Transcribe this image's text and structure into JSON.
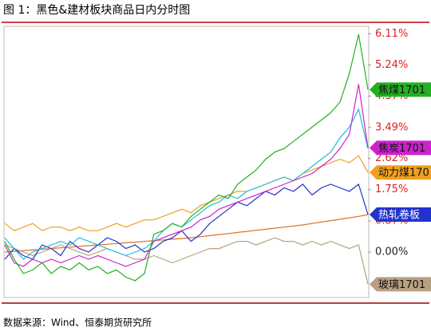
{
  "chart_data": {
    "type": "line",
    "title": "图 1：黑色&建材板块商品日内分时图",
    "source": "数据来源：Wind、恒泰期货研究所",
    "ylim": [
      -1.25,
      6.3
    ],
    "yticks": [
      {
        "value": 0,
        "label": "0.00%"
      },
      {
        "value": 0.87,
        "label": "0.87%"
      },
      {
        "value": 1.75,
        "label": "1.75%"
      },
      {
        "value": 2.62,
        "label": "2.62%"
      },
      {
        "value": 3.49,
        "label": "3.49%"
      },
      {
        "value": 4.37,
        "label": "4.37%"
      },
      {
        "value": 5.24,
        "label": "5.24%"
      },
      {
        "value": 6.11,
        "label": "6.11%"
      }
    ],
    "series": [
      {
        "color": "#e07020",
        "values": [
          0,
          0.02,
          0.04,
          0.06,
          0.08,
          0.1,
          0.12,
          0.14,
          0.16,
          0.18,
          0.2,
          0.22,
          0.24,
          0.26,
          0.28,
          0.3,
          0.32,
          0.34,
          0.36,
          0.38,
          0.4,
          0.43,
          0.46,
          0.49,
          0.52,
          0.55,
          0.58,
          0.61,
          0.64,
          0.67,
          0.7,
          0.73,
          0.76,
          0.8,
          0.84,
          0.88,
          0.92,
          0.96,
          1.0,
          1.05
        ]
      },
      {
        "name": "玻璃1701",
        "color": "#b8a080",
        "values": [
          0.2,
          0.1,
          0.0,
          -0.1,
          0.0,
          0.1,
          0.2,
          0.1,
          0.0,
          -0.1,
          0.0,
          0.1,
          0.0,
          -0.1,
          -0.2,
          -0.2,
          -0.1,
          -0.2,
          -0.3,
          -0.2,
          -0.1,
          0.0,
          0.1,
          0.1,
          0.2,
          0.3,
          0.3,
          0.2,
          0.3,
          0.4,
          0.3,
          0.3,
          0.2,
          0.3,
          0.2,
          0.3,
          0.2,
          0.1,
          0.2,
          -0.9
        ]
      },
      {
        "name": "动力煤170",
        "color": "#f0a020",
        "values": [
          0.8,
          0.6,
          0.7,
          0.8,
          0.6,
          0.7,
          0.7,
          0.6,
          0.7,
          0.6,
          0.6,
          0.7,
          0.8,
          0.7,
          0.8,
          0.9,
          0.9,
          1.0,
          1.1,
          1.2,
          1.1,
          1.3,
          1.4,
          1.5,
          1.6,
          1.7,
          1.7,
          1.8,
          1.9,
          2.0,
          2.1,
          2.0,
          2.2,
          2.3,
          2.4,
          2.5,
          2.6,
          2.5,
          2.7,
          2.23
        ]
      },
      {
        "name": "热轧卷板",
        "color": "#2233cc",
        "values": [
          -0.2,
          0.1,
          -0.1,
          -0.2,
          0.2,
          0.1,
          -0.1,
          0.3,
          0.1,
          0.0,
          0.2,
          0.4,
          0.3,
          0.1,
          0.2,
          0.0,
          0.1,
          0.3,
          0.4,
          0.6,
          0.3,
          0.5,
          0.8,
          1.0,
          1.2,
          1.4,
          1.3,
          1.5,
          1.7,
          1.6,
          1.8,
          1.7,
          1.9,
          1.6,
          1.8,
          1.9,
          1.8,
          1.7,
          1.9,
          1.05
        ]
      },
      {
        "color": "#22bbdd",
        "values": [
          0.4,
          0.1,
          -0.2,
          0.0,
          0.1,
          0.2,
          0.3,
          0.2,
          0.4,
          0.3,
          0.2,
          0.1,
          0.0,
          -0.1,
          0.0,
          0.1,
          0.3,
          0.6,
          0.8,
          0.7,
          0.9,
          1.1,
          1.3,
          1.4,
          1.6,
          1.5,
          1.7,
          1.8,
          1.9,
          2.0,
          2.1,
          2.0,
          2.2,
          2.4,
          2.6,
          2.8,
          3.2,
          3.5,
          4.0,
          2.9
        ]
      },
      {
        "name": "焦炭1701",
        "color": "#cc22cc",
        "values": [
          0.2,
          -0.3,
          -0.4,
          -0.2,
          -0.3,
          -0.2,
          -0.3,
          -0.2,
          -0.1,
          -0.2,
          -0.1,
          -0.2,
          -0.3,
          -0.4,
          -0.3,
          -0.2,
          0.3,
          0.4,
          0.5,
          0.6,
          0.7,
          0.9,
          1.0,
          1.2,
          1.3,
          1.4,
          1.5,
          1.6,
          1.7,
          1.8,
          1.9,
          2.0,
          2.1,
          2.2,
          2.4,
          2.6,
          2.9,
          3.3,
          4.7,
          2.92
        ]
      },
      {
        "name": "焦煤1701",
        "color": "#22b022",
        "values": [
          0.3,
          -0.2,
          -0.6,
          -0.5,
          -0.3,
          -0.6,
          -0.4,
          -0.5,
          -0.3,
          -0.5,
          -0.4,
          -0.6,
          -0.5,
          -0.7,
          -0.8,
          -0.6,
          0.5,
          0.6,
          0.8,
          0.7,
          1.0,
          1.2,
          1.4,
          1.6,
          1.5,
          1.9,
          2.1,
          2.3,
          2.6,
          2.8,
          2.9,
          3.1,
          3.3,
          3.5,
          3.7,
          3.9,
          4.2,
          5.0,
          6.1,
          4.55
        ]
      }
    ]
  }
}
